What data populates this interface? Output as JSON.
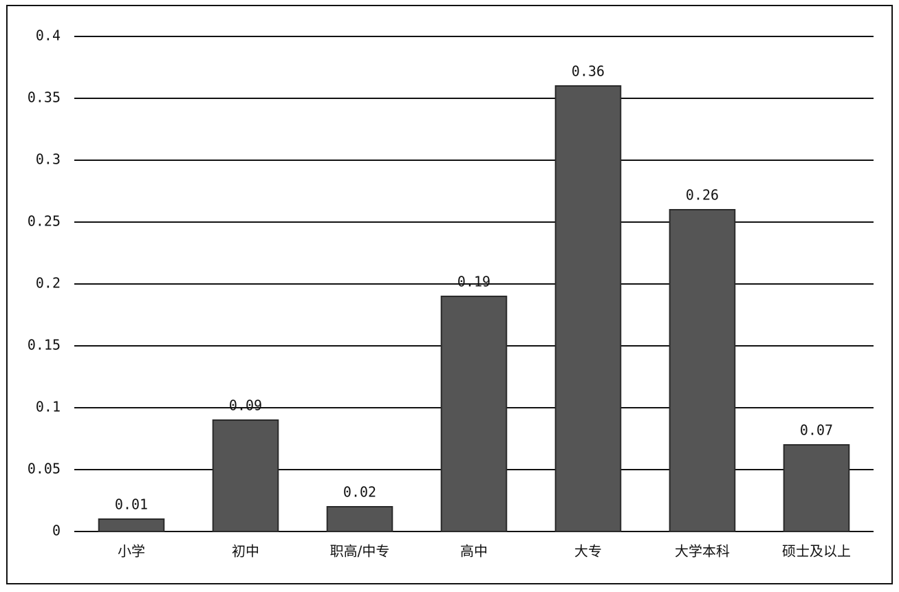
{
  "chart_data": {
    "type": "bar",
    "categories": [
      "小学",
      "初中",
      "职高/中专",
      "高中",
      "大专",
      "大学本科",
      "硕士及以上"
    ],
    "values": [
      0.01,
      0.09,
      0.02,
      0.19,
      0.36,
      0.26,
      0.07
    ],
    "color": "#555555",
    "ylim": [
      0,
      0.4
    ],
    "yticks": [
      0,
      0.05,
      0.1,
      0.15,
      0.2,
      0.25,
      0.3,
      0.35,
      0.4
    ],
    "grid": true
  }
}
